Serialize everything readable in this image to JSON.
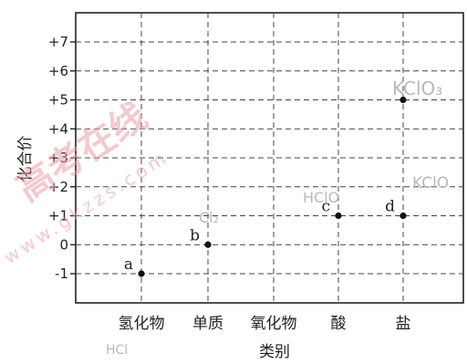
{
  "chart_data": {
    "type": "scatter",
    "ylabel": "化合价",
    "xlabel": "类别",
    "categories": [
      "氢化物",
      "单质",
      "氧化物",
      "酸",
      "盐"
    ],
    "y_ticks": [
      "+7",
      "+6",
      "+5",
      "+4",
      "+3",
      "+2",
      "+1",
      "0",
      "-1"
    ],
    "ylim": [
      -1,
      7
    ],
    "grid": true,
    "points": [
      {
        "label": "a",
        "category": "氢化物",
        "y": -1
      },
      {
        "label": "b",
        "category": "单质",
        "y": 0
      },
      {
        "label": "c",
        "category": "酸",
        "y": 1
      },
      {
        "label": "d",
        "category": "盐",
        "y": 1
      },
      {
        "label": "",
        "category": "盐",
        "y": 5
      }
    ]
  },
  "watermark": {
    "text_cn": "高考在线",
    "text_url": "www.gkzzs.com"
  },
  "handwriting": {
    "hw1": "Cl₂",
    "hw2": "HClO",
    "hw3": "KClO",
    "hw4": "KClO₃",
    "hw5": "HCl"
  }
}
